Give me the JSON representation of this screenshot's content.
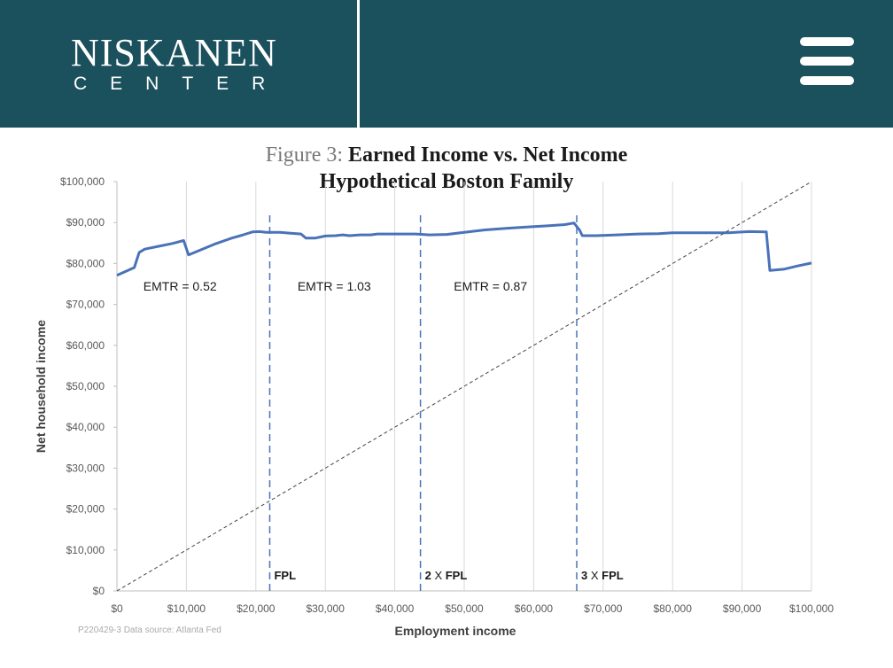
{
  "header": {
    "logo_main": "NISKANEN",
    "logo_sub": "CENTER",
    "menu_icon": "hamburger-menu-icon",
    "background": "#1b505d"
  },
  "chart_data": {
    "type": "line",
    "title_label": "Figure 3:",
    "title": "Earned Income vs. Net Income",
    "subtitle": "Hypothetical Boston Family",
    "xlabel": "Employment income",
    "ylabel": "Net household income",
    "xlim": [
      0,
      100000
    ],
    "ylim": [
      0,
      100000
    ],
    "x_ticks": [
      "$0",
      "$10,000",
      "$20,000",
      "$30,000",
      "$40,000",
      "$50,000",
      "$60,000",
      "$70,000",
      "$80,000",
      "$90,000",
      "$100,000"
    ],
    "y_ticks": [
      "$0",
      "$10,000",
      "$20,000",
      "$30,000",
      "$40,000",
      "$50,000",
      "$60,000",
      "$70,000",
      "$80,000",
      "$90,000",
      "$100,000"
    ],
    "grid": "vertical",
    "series": [
      {
        "color": "#4a72b8",
        "points": [
          [
            0,
            77100
          ],
          [
            2500,
            79000
          ],
          [
            3200,
            82700
          ],
          [
            4000,
            83500
          ],
          [
            6000,
            84200
          ],
          [
            8000,
            84900
          ],
          [
            9600,
            85600
          ],
          [
            10300,
            82100
          ],
          [
            12000,
            83300
          ],
          [
            14000,
            84700
          ],
          [
            16500,
            86200
          ],
          [
            18000,
            86900
          ],
          [
            19500,
            87700
          ],
          [
            20500,
            87800
          ],
          [
            21500,
            87600
          ],
          [
            23500,
            87600
          ],
          [
            25000,
            87400
          ],
          [
            26500,
            87200
          ],
          [
            27200,
            86200
          ],
          [
            28500,
            86200
          ],
          [
            30000,
            86700
          ],
          [
            31500,
            86800
          ],
          [
            32500,
            87000
          ],
          [
            33500,
            86800
          ],
          [
            35000,
            87000
          ],
          [
            36500,
            87000
          ],
          [
            37500,
            87200
          ],
          [
            40000,
            87200
          ],
          [
            43000,
            87200
          ],
          [
            45000,
            87000
          ],
          [
            47500,
            87100
          ],
          [
            50000,
            87600
          ],
          [
            53000,
            88200
          ],
          [
            56000,
            88600
          ],
          [
            59000,
            88900
          ],
          [
            62000,
            89200
          ],
          [
            64500,
            89500
          ],
          [
            65800,
            89900
          ],
          [
            66600,
            88200
          ],
          [
            67000,
            86800
          ],
          [
            69000,
            86800
          ],
          [
            72000,
            87000
          ],
          [
            75000,
            87200
          ],
          [
            78000,
            87300
          ],
          [
            80000,
            87500
          ],
          [
            84000,
            87500
          ],
          [
            88000,
            87500
          ],
          [
            91000,
            87800
          ],
          [
            93500,
            87700
          ],
          [
            94000,
            78300
          ],
          [
            96000,
            78600
          ],
          [
            98000,
            79400
          ],
          [
            100000,
            80100
          ]
        ]
      },
      {
        "style": "dashed",
        "color": "#444444",
        "points": [
          [
            0,
            0
          ],
          [
            100000,
            100000
          ]
        ]
      }
    ],
    "vlines": [
      {
        "x": 22000,
        "label": "FPL"
      },
      {
        "x": 43700,
        "label_bold": "2",
        "label_mid": "X",
        "label_end": "FPL"
      },
      {
        "x": 66200,
        "label_bold": "3",
        "label_mid": "X",
        "label_end": "FPL"
      }
    ],
    "annotations": [
      {
        "text": "EMTR = 0.52",
        "x": 3800,
        "y": 74500
      },
      {
        "text": "EMTR = 1.03",
        "x": 26000,
        "y": 74500
      },
      {
        "text": "EMTR = 0.87",
        "x": 48500,
        "y": 74500
      }
    ],
    "source_note": "P220429-3 Data source: Atlanta Fed"
  }
}
